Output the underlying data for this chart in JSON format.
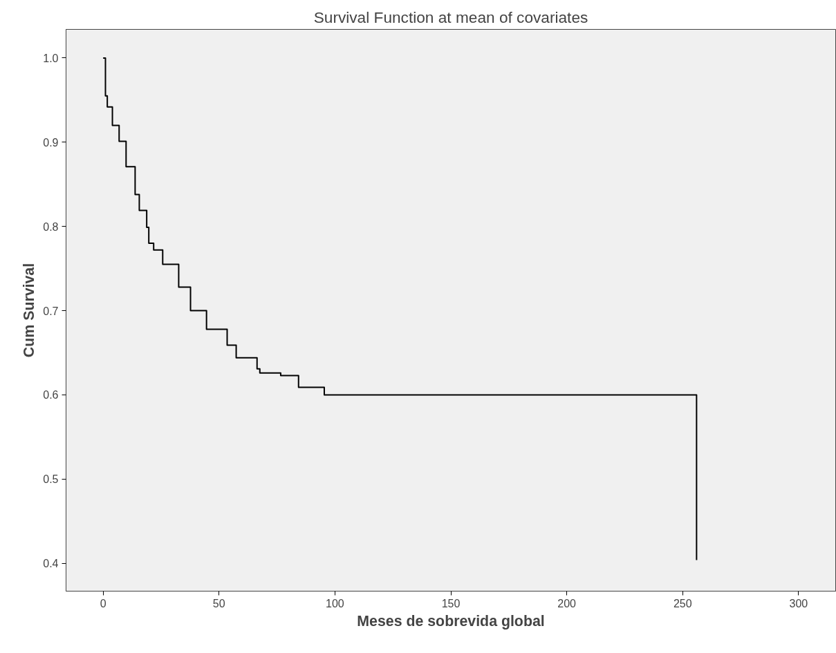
{
  "chart_data": {
    "type": "step",
    "title": "Survival Function at mean of covariates",
    "xlabel": "Meses de sobrevida global",
    "ylabel": "Cum Survival",
    "xlim": [
      -16,
      316
    ],
    "ylim": [
      0.367,
      1.034
    ],
    "xticks": [
      0,
      50,
      100,
      150,
      200,
      250,
      300
    ],
    "yticks": [
      {
        "value": 0.4,
        "label": "0.4"
      },
      {
        "value": 0.5,
        "label": "0.5"
      },
      {
        "value": 0.6,
        "label": "0.6"
      },
      {
        "value": 0.7,
        "label": "0.7"
      },
      {
        "value": 0.8,
        "label": "0.8"
      },
      {
        "value": 0.9,
        "label": "0.9"
      },
      {
        "value": 1.0,
        "label": "1.0"
      }
    ],
    "grid": false,
    "marker": "none",
    "line_style": "solid",
    "series": [
      {
        "color": "#000000",
        "x": [
          0,
          1,
          1.8,
          4,
          6.9,
          9.9,
          13.8,
          15.6,
          18.8,
          19.7,
          21.8,
          25.7,
          32.6,
          37.7,
          44.6,
          53.5,
          57.4,
          66.4,
          67.6,
          76.6,
          84.3,
          95.4,
          256,
          256
        ],
        "values": [
          1.0,
          0.955,
          0.942,
          0.92,
          0.901,
          0.871,
          0.838,
          0.819,
          0.799,
          0.78,
          0.772,
          0.755,
          0.728,
          0.7,
          0.678,
          0.659,
          0.644,
          0.631,
          0.626,
          0.623,
          0.609,
          0.6,
          0.6,
          0.404
        ]
      }
    ]
  }
}
